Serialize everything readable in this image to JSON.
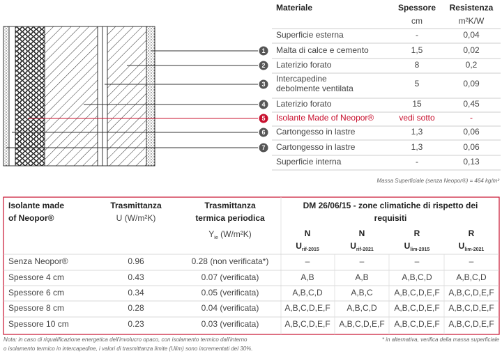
{
  "layers": {
    "header": {
      "material": "Materiale",
      "thickness": "Spessore",
      "resistance": "Resistenza"
    },
    "units": {
      "thickness": "cm",
      "resistance": "m²K/W"
    },
    "rows": [
      {
        "label": [
          "Superficie esterna"
        ],
        "thickness": "-",
        "resistance": "0,04"
      },
      {
        "number": "1",
        "label": [
          "Malta di calce e cemento"
        ],
        "thickness": "1,5",
        "resistance": "0,02"
      },
      {
        "number": "2",
        "label": [
          "Laterizio forato"
        ],
        "thickness": "8",
        "resistance": "0,2"
      },
      {
        "number": "3",
        "label": [
          "Intercapedine",
          "debolmente ventilata"
        ],
        "thickness": "5",
        "resistance": "0,09"
      },
      {
        "number": "4",
        "label": [
          "Laterizio forato"
        ],
        "thickness": "15",
        "resistance": "0,45"
      },
      {
        "number": "5",
        "label": [
          "Isolante Made of Neopor®"
        ],
        "thickness": "vedi sotto",
        "resistance": "-"
      },
      {
        "number": "6",
        "label": [
          "Cartongesso in lastre"
        ],
        "thickness": "1,3",
        "resistance": "0,06"
      },
      {
        "number": "7",
        "label": [
          "Cartongesso in lastre"
        ],
        "thickness": "1,3",
        "resistance": "0,06"
      },
      {
        "label": [
          "Superficie interna"
        ],
        "thickness": "-",
        "resistance": "0,13"
      }
    ],
    "mass_note": "Massa Superficiale (senza Neopor®) = 464 kg/m²"
  },
  "table": {
    "headers": {
      "insulation": [
        "Isolante made",
        "of Neopor®"
      ],
      "transmittance": {
        "title": "Trasmittanza",
        "unit": "U (W/m²K)"
      },
      "periodic": {
        "title": [
          "Trasmittanza",
          "termica periodica"
        ],
        "symbol": "Y",
        "subscript": "ie",
        "unit": " (W/m²K)"
      },
      "dm": [
        "DM 26/06/15 - zone climatiche di rispetto dei",
        "requisiti"
      ],
      "sub": [
        {
          "letter": "N",
          "symbol": "U",
          "subscript": "rif-2015"
        },
        {
          "letter": "N",
          "symbol": "U",
          "subscript": "rif-2021"
        },
        {
          "letter": "R",
          "symbol": "U",
          "subscript": "lim-2015"
        },
        {
          "letter": "R",
          "symbol": "U",
          "subscript": "lim-2021"
        }
      ]
    },
    "rows": [
      [
        "Senza Neopor®",
        "0.96",
        "0.28 (non verificata*)",
        "–",
        "–",
        "–",
        "–"
      ],
      [
        "Spessore 4 cm",
        "0.43",
        "0.07 (verificata)",
        "A,B",
        "A,B",
        "A,B,C,D",
        "A,B,C,D"
      ],
      [
        "Spessore 6 cm",
        "0.34",
        "0.05 (verificata)",
        "A,B,C,D",
        "A,B,C",
        "A,B,C,D,E,F",
        "A,B,C,D,E,F"
      ],
      [
        "Spessore 8 cm",
        "0.28",
        "0.04 (verificata)",
        "A,B,C,D,E,F",
        "A,B,C,D",
        "A,B,C,D,E,F",
        "A,B,C,D,E,F"
      ],
      [
        "Spessore 10 cm",
        "0.23",
        "0.03 (verificata)",
        "A,B,C,D,E,F",
        "A,B,C,D,E,F",
        "A,B,C,D,E,F",
        "A,B,C,D,E,F"
      ]
    ]
  },
  "notes": {
    "left": [
      "Nota: in caso di riqualificazione energetica dell'involucro opaco, con isolamento termico dall'interno",
      "o isolamento termico in intercapedine, i valori di trasmittanza limite (Ulim) sono incrementati del 30%."
    ],
    "right": "* in alternativa, verifica della massa superficiale"
  }
}
